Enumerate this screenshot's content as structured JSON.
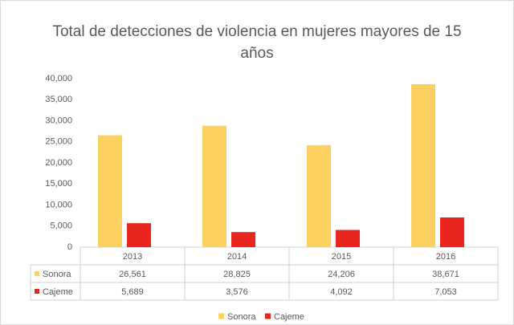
{
  "chart_data": {
    "type": "bar",
    "title": "Total de detecciones de violencia en mujeres mayores de 15 años",
    "categories": [
      "2013",
      "2014",
      "2015",
      "2016"
    ],
    "series": [
      {
        "name": "Sonora",
        "color": "#fcd15f",
        "values": [
          26561,
          28825,
          24206,
          38671
        ],
        "value_labels": [
          "26,561",
          "28,825",
          "24,206",
          "38,671"
        ]
      },
      {
        "name": "Cajeme",
        "color": "#e8261e",
        "values": [
          5689,
          3576,
          4092,
          7053
        ],
        "value_labels": [
          "5,689",
          "3,576",
          "4,092",
          "7,053"
        ]
      }
    ],
    "ylim": [
      0,
      40000
    ],
    "yticks": [
      0,
      {
        "value": 5000,
        "label": "5,000"
      },
      {
        "value": 10000,
        "label": "10,000"
      },
      {
        "value": 15000,
        "label": "15,000"
      },
      {
        "value": 20000,
        "label": "20,000"
      },
      {
        "value": 25000,
        "label": "25,000"
      },
      {
        "value": 30000,
        "label": "30,000"
      },
      {
        "value": 35000,
        "label": "35,000"
      },
      {
        "value": 40000,
        "label": "40,000"
      }
    ],
    "legend": "bottom"
  }
}
